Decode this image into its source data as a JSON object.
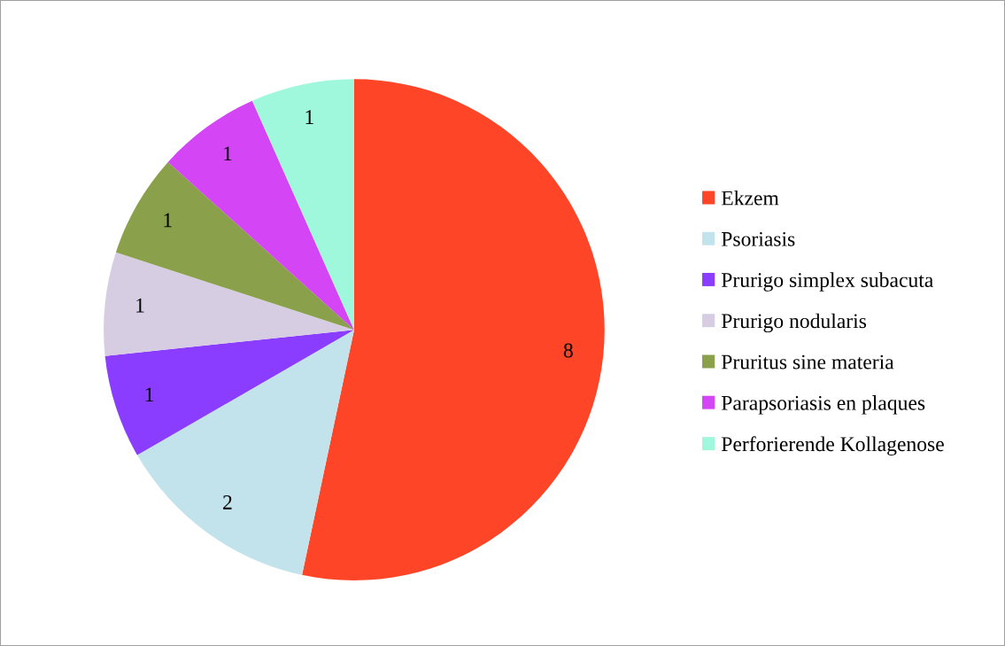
{
  "chart_data": {
    "type": "pie",
    "categories": [
      "Ekzem",
      "Psoriasis",
      "Prurigo simplex subacuta",
      "Prurigo nodularis",
      "Pruritus sine materia",
      "Parapsoriasis en plaques",
      "Perforierende Kollagenose"
    ],
    "values": [
      8,
      2,
      1,
      1,
      1,
      1,
      1
    ],
    "colors": [
      "#ff4527",
      "#c3e3ec",
      "#8a3cff",
      "#d6cde3",
      "#8aa04a",
      "#d445f5",
      "#a0f8dc"
    ],
    "data_labels": true,
    "legend": "right"
  }
}
